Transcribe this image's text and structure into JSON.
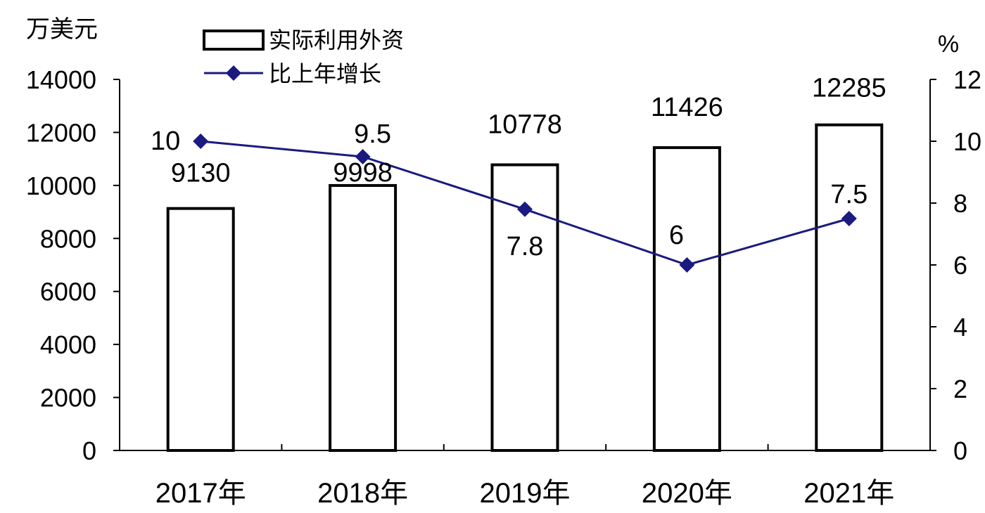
{
  "chart_data": {
    "type": "bar",
    "categories": [
      "2017年",
      "2018年",
      "2019年",
      "2020年",
      "2021年"
    ],
    "left_axis": {
      "unit": "万美元",
      "range": [
        0,
        14000
      ],
      "ticks": [
        "0",
        "2000",
        "4000",
        "6000",
        "8000",
        "10000",
        "12000",
        "14000"
      ]
    },
    "right_axis": {
      "unit": "%",
      "range": [
        0,
        12
      ],
      "ticks": [
        "0",
        "2",
        "4",
        "6",
        "8",
        "10",
        "12"
      ]
    },
    "series": [
      {
        "name": "实际利用外资",
        "type": "bar",
        "axis": "left",
        "values": [
          9130,
          9998,
          10778,
          11426,
          12285
        ],
        "labels": [
          "9130",
          "9998",
          "10778",
          "11426",
          "12285"
        ],
        "color": "#000000",
        "fill": "#ffffff"
      },
      {
        "name": "比上年增长",
        "type": "line",
        "axis": "right",
        "values": [
          10,
          9.5,
          7.8,
          6,
          7.5
        ],
        "labels": [
          "10",
          "9.5",
          "7.8",
          "6",
          "7.5"
        ],
        "color": "#1a1a80"
      }
    ],
    "legend": "top-left",
    "grid": false
  }
}
